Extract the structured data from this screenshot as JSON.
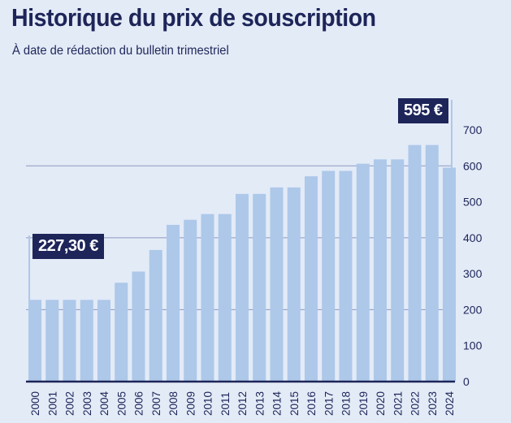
{
  "title": "Historique du prix de souscription",
  "subtitle": "À date de rédaction du bulletin trimestriel",
  "colors": {
    "background": "#e3ebf7",
    "bar": "#adc8e9",
    "text": "#1d2559",
    "grid": "#8f97c4"
  },
  "callouts": {
    "first": "227,30 €",
    "last": "595 €"
  },
  "chart_data": {
    "type": "bar",
    "title": "Historique du prix de souscription",
    "subtitle": "À date de rédaction du bulletin trimestriel",
    "xlabel": "",
    "ylabel": "",
    "ylim": [
      0,
      700
    ],
    "yticks": [
      0,
      100,
      200,
      300,
      400,
      500,
      600,
      700
    ],
    "grid_lines": [
      200,
      400,
      600
    ],
    "categories": [
      "2000",
      "2001",
      "2002",
      "2003",
      "2004",
      "2005",
      "2006",
      "2007",
      "2008",
      "2009",
      "2010",
      "2011",
      "2012",
      "2013",
      "2014",
      "2015",
      "2016",
      "2017",
      "2018",
      "2019",
      "2020",
      "2021",
      "2022",
      "2023",
      "2024"
    ],
    "values": [
      227.3,
      227.3,
      227.3,
      227.3,
      227.3,
      275,
      306,
      366,
      436,
      450,
      466,
      466,
      522,
      522,
      540,
      540,
      571,
      586,
      586,
      606,
      618,
      618,
      658,
      658,
      595
    ]
  }
}
